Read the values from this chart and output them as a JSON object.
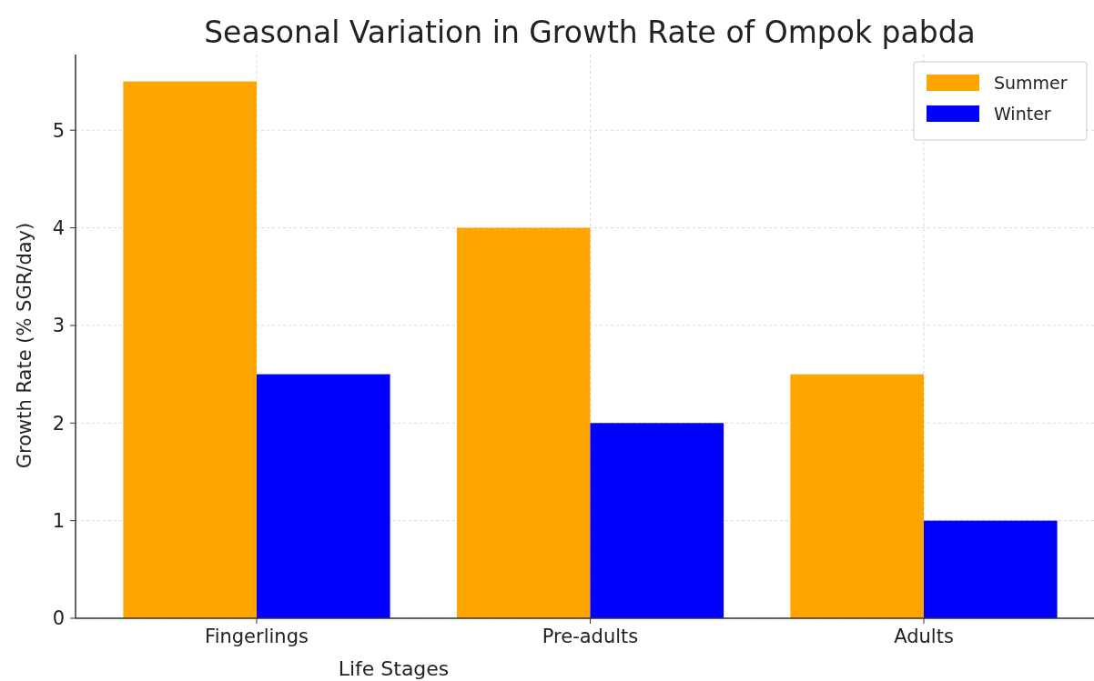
{
  "chart_data": {
    "type": "bar",
    "title": "Seasonal Variation in Growth Rate of Ompok pabda",
    "xlabel": "Life Stages",
    "ylabel": "Growth Rate (% SGR/day)",
    "categories": [
      "Fingerlings",
      "Pre-adults",
      "Adults"
    ],
    "series": [
      {
        "name": "Summer",
        "color": "#ffa500",
        "values": [
          5.5,
          4,
          2.5
        ]
      },
      {
        "name": "Winter",
        "color": "#0000ff",
        "values": [
          2.5,
          2,
          1
        ]
      }
    ],
    "ylim": [
      0,
      5.775
    ],
    "yticks": [
      0,
      1,
      2,
      3,
      4,
      5
    ],
    "grid": true,
    "legend": "top right"
  }
}
